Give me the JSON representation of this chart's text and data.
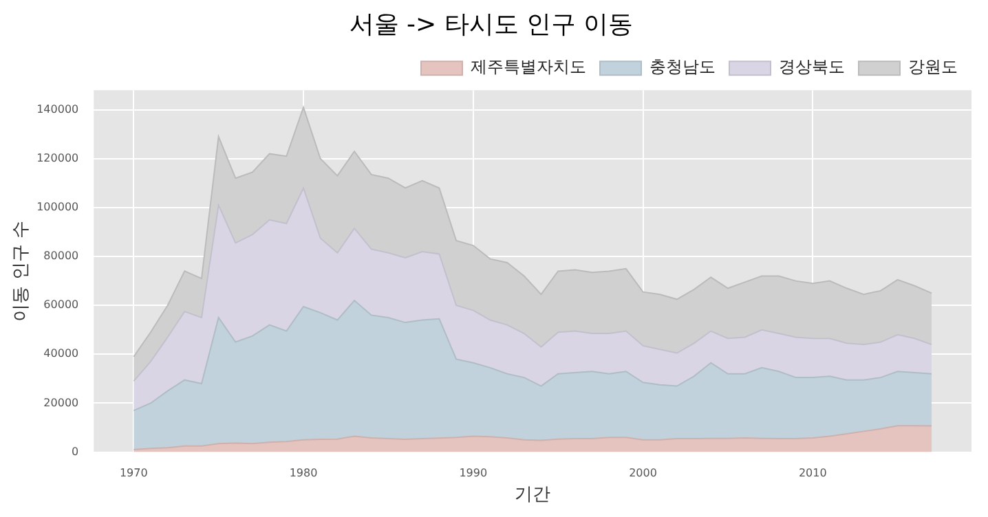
{
  "chart_data": {
    "type": "area",
    "title": "서울 -> 타시도 인구 이동",
    "xlabel": "기간",
    "ylabel": "이동 인구 수",
    "stacked": true,
    "legend": "top right",
    "grid": true,
    "x": [
      1970,
      1971,
      1972,
      1973,
      1974,
      1975,
      1976,
      1977,
      1978,
      1979,
      1980,
      1981,
      1982,
      1983,
      1984,
      1985,
      1986,
      1987,
      1988,
      1989,
      1990,
      1991,
      1992,
      1993,
      1994,
      1995,
      1996,
      1997,
      1998,
      1999,
      2000,
      2001,
      2002,
      2003,
      2004,
      2005,
      2006,
      2007,
      2008,
      2009,
      2010,
      2011,
      2012,
      2013,
      2014,
      2015,
      2016,
      2017
    ],
    "xlim": [
      1967.65,
      2019.35
    ],
    "xticks": [
      1970,
      1980,
      1990,
      2000,
      2010
    ],
    "ylim": [
      0,
      148000
    ],
    "yticks": [
      0,
      20000,
      40000,
      60000,
      80000,
      100000,
      120000,
      140000
    ],
    "series": [
      {
        "name": "제주특별자치도",
        "color": "#e5c4c0",
        "values": [
          1000,
          1500,
          1800,
          2500,
          2500,
          3500,
          3700,
          3500,
          4000,
          4300,
          5000,
          5200,
          5300,
          6500,
          5800,
          5500,
          5200,
          5500,
          5700,
          6000,
          6500,
          6300,
          5800,
          5000,
          4800,
          5300,
          5500,
          5500,
          6000,
          6000,
          5000,
          5000,
          5500,
          5500,
          5600,
          5600,
          5800,
          5600,
          5500,
          5500,
          5800,
          6500,
          7500,
          8500,
          9500,
          10800,
          10800,
          10700
        ]
      },
      {
        "name": "충청남도",
        "color": "#c1d2dc",
        "values": [
          16000,
          18500,
          23200,
          27000,
          25500,
          51500,
          41300,
          44000,
          48000,
          45200,
          54500,
          51800,
          48700,
          55500,
          50200,
          49500,
          47800,
          48500,
          48800,
          32000,
          30000,
          28200,
          26200,
          25500,
          22200,
          26700,
          27000,
          27500,
          26000,
          27000,
          23500,
          22500,
          21500,
          25500,
          30900,
          26400,
          26200,
          28900,
          27500,
          25000,
          24700,
          24500,
          22000,
          21000,
          21000,
          22200,
          21700,
          21300
        ]
      },
      {
        "name": "경상북도",
        "color": "#d9d5e4",
        "values": [
          12000,
          17000,
          22000,
          28000,
          27000,
          46000,
          40500,
          41500,
          43000,
          44000,
          48500,
          30500,
          27500,
          29500,
          27000,
          26500,
          26500,
          28000,
          26500,
          22000,
          21500,
          19500,
          20000,
          18000,
          16000,
          17000,
          17000,
          15500,
          16500,
          16500,
          15000,
          14500,
          13500,
          13500,
          13000,
          14500,
          15000,
          15500,
          15500,
          16500,
          16000,
          15500,
          15000,
          14500,
          14500,
          15000,
          14000,
          12000
        ]
      },
      {
        "name": "강원도",
        "color": "#d0d0d0",
        "values": [
          10000,
          12000,
          13000,
          16500,
          16000,
          28000,
          26500,
          25500,
          27000,
          27500,
          33000,
          32500,
          31500,
          31500,
          30500,
          30500,
          28500,
          29000,
          27000,
          26500,
          26500,
          25000,
          25500,
          23500,
          21500,
          25000,
          25000,
          25000,
          25500,
          25500,
          22000,
          22500,
          22000,
          22000,
          22000,
          20500,
          22500,
          22000,
          23500,
          23000,
          22500,
          23500,
          22500,
          20500,
          21000,
          22500,
          21500,
          21000
        ]
      }
    ]
  }
}
